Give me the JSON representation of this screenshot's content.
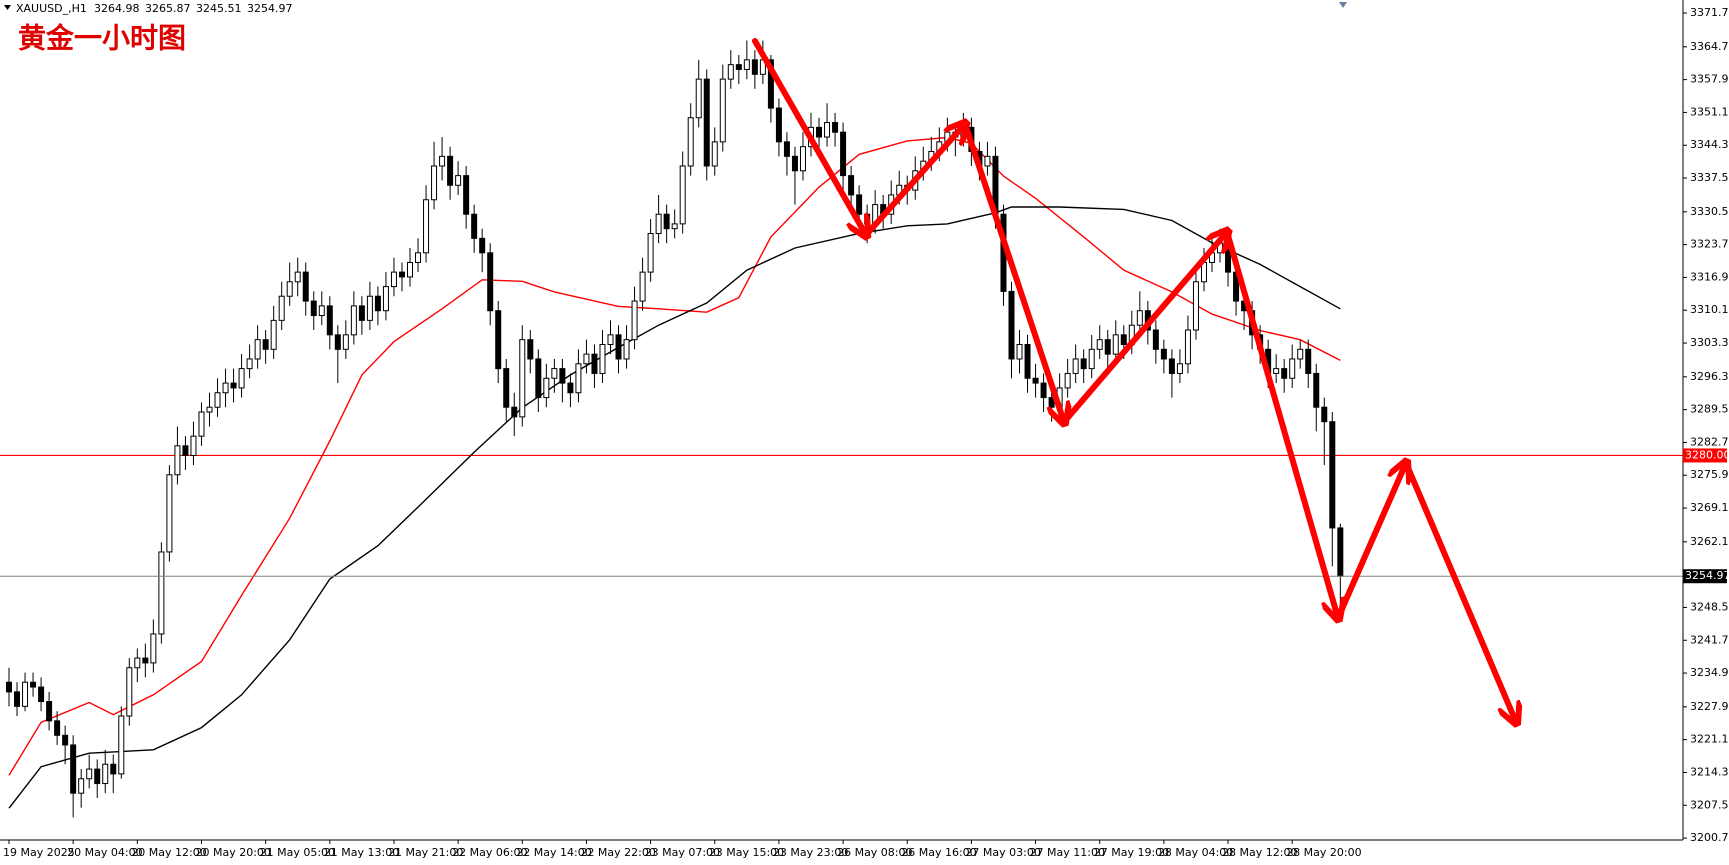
{
  "chart_data": {
    "type": "candlestick",
    "title": "黄金一小时图",
    "symbol": "XAUUSD_,H1",
    "ylim": [
      3200.3,
      3374.4
    ],
    "yticks": [
      {
        "value": 3371.7,
        "label": "3371.70"
      },
      {
        "value": 3364.7,
        "label": "3364.70"
      },
      {
        "value": 3357.9,
        "label": "3357.90"
      },
      {
        "value": 3351.1,
        "label": "3351.10"
      },
      {
        "value": 3344.3,
        "label": "3344.30"
      },
      {
        "value": 3337.5,
        "label": "3337.50"
      },
      {
        "value": 3330.5,
        "label": "3330.50"
      },
      {
        "value": 3323.7,
        "label": "3323.70"
      },
      {
        "value": 3316.9,
        "label": "3316.90"
      },
      {
        "value": 3310.1,
        "label": "3310.10"
      },
      {
        "value": 3303.3,
        "label": "3303.30"
      },
      {
        "value": 3296.3,
        "label": "3296.30"
      },
      {
        "value": 3289.5,
        "label": "3289.50"
      },
      {
        "value": 3282.7,
        "label": "3282.70"
      },
      {
        "value": 3275.9,
        "label": "3275.90"
      },
      {
        "value": 3269.1,
        "label": "3269.10"
      },
      {
        "value": 3262.1,
        "label": "3262.10"
      },
      {
        "value": 3248.5,
        "label": "3248.50"
      },
      {
        "value": 3241.7,
        "label": "3241.70"
      },
      {
        "value": 3234.9,
        "label": "3234.90"
      },
      {
        "value": 3227.9,
        "label": "3227.90"
      },
      {
        "value": 3221.1,
        "label": "3221.10"
      },
      {
        "value": 3214.3,
        "label": "3214.30"
      },
      {
        "value": 3207.5,
        "label": "3207.50"
      },
      {
        "value": 3200.7,
        "label": "3200.70"
      }
    ],
    "grid": false,
    "bull_color": "#ffffff",
    "bear_color": "#000000",
    "outline_color": "#000000",
    "categories": [
      "19 May 2025",
      null,
      null,
      null,
      null,
      null,
      null,
      null,
      "20 May 04:00",
      null,
      null,
      null,
      null,
      null,
      null,
      null,
      "20 May 12:00",
      null,
      null,
      null,
      null,
      null,
      null,
      null,
      "20 May 20:00",
      null,
      null,
      null,
      null,
      null,
      null,
      null,
      "21 May 05:00",
      null,
      null,
      null,
      null,
      null,
      null,
      null,
      "21 May 13:00",
      null,
      null,
      null,
      null,
      null,
      null,
      null,
      "21 May 21:00",
      null,
      null,
      null,
      null,
      null,
      null,
      null,
      "22 May 06:00",
      null,
      null,
      null,
      null,
      null,
      null,
      null,
      "22 May 14:00",
      null,
      null,
      null,
      null,
      null,
      null,
      null,
      "22 May 22:00",
      null,
      null,
      null,
      null,
      null,
      null,
      null,
      "23 May 07:00",
      null,
      null,
      null,
      null,
      null,
      null,
      null,
      "23 May 15:00",
      null,
      null,
      null,
      null,
      null,
      null,
      null,
      "23 May 23:00",
      null,
      null,
      null,
      null,
      null,
      null,
      null,
      "26 May 08:00",
      null,
      null,
      null,
      null,
      null,
      null,
      null,
      "26 May 16:00",
      null,
      null,
      null,
      null,
      null,
      null,
      null,
      "27 May 03:00",
      null,
      null,
      null,
      null,
      null,
      null,
      null,
      "27 May 11:00",
      null,
      null,
      null,
      null,
      null,
      null,
      null,
      "27 May 19:00",
      null,
      null,
      null,
      null,
      null,
      null,
      null,
      "28 May 04:00",
      null,
      null,
      null,
      null,
      null,
      null,
      null,
      "28 May 12:00",
      null,
      null,
      null,
      null,
      null,
      null,
      null,
      "28 May 20:00",
      null,
      null,
      null,
      null,
      null,
      null
    ],
    "ohlc": [
      [
        3233,
        3236,
        3228,
        3231
      ],
      [
        3231,
        3233,
        3226,
        3228
      ],
      [
        3228,
        3235,
        3227,
        3233
      ],
      [
        3233,
        3235,
        3230,
        3232
      ],
      [
        3232,
        3234,
        3227,
        3229
      ],
      [
        3229,
        3231,
        3223,
        3225
      ],
      [
        3225,
        3227,
        3220,
        3222
      ],
      [
        3222,
        3224,
        3216,
        3220
      ],
      [
        3220,
        3222,
        3205,
        3210
      ],
      [
        3210,
        3215,
        3207,
        3213
      ],
      [
        3213,
        3218,
        3211,
        3215
      ],
      [
        3215,
        3217,
        3209,
        3212
      ],
      [
        3212,
        3219,
        3210,
        3216
      ],
      [
        3216,
        3218,
        3210,
        3214
      ],
      [
        3214,
        3228,
        3213,
        3226
      ],
      [
        3226,
        3238,
        3224,
        3236
      ],
      [
        3236,
        3240,
        3233,
        3238
      ],
      [
        3238,
        3241,
        3234,
        3237
      ],
      [
        3237,
        3246,
        3235,
        3243
      ],
      [
        3243,
        3262,
        3241,
        3260
      ],
      [
        3260,
        3278,
        3258,
        3276
      ],
      [
        3276,
        3286,
        3274,
        3282
      ],
      [
        3282,
        3284,
        3277,
        3280
      ],
      [
        3280,
        3287,
        3278,
        3284
      ],
      [
        3284,
        3291,
        3282,
        3289
      ],
      [
        3289,
        3293,
        3286,
        3290
      ],
      [
        3290,
        3296,
        3288,
        3293
      ],
      [
        3293,
        3298,
        3290,
        3295
      ],
      [
        3295,
        3298,
        3291,
        3294
      ],
      [
        3294,
        3301,
        3292,
        3298
      ],
      [
        3298,
        3303,
        3296,
        3300
      ],
      [
        3300,
        3307,
        3298,
        3304
      ],
      [
        3304,
        3306,
        3299,
        3302
      ],
      [
        3302,
        3311,
        3300,
        3308
      ],
      [
        3308,
        3316,
        3306,
        3313
      ],
      [
        3313,
        3320,
        3311,
        3316
      ],
      [
        3316,
        3321,
        3313,
        3318
      ],
      [
        3318,
        3320,
        3309,
        3312
      ],
      [
        3312,
        3314,
        3306,
        3309
      ],
      [
        3309,
        3314,
        3307,
        3311
      ],
      [
        3311,
        3313,
        3302,
        3305
      ],
      [
        3305,
        3307,
        3295,
        3302
      ],
      [
        3302,
        3308,
        3300,
        3305
      ],
      [
        3305,
        3314,
        3303,
        3311
      ],
      [
        3311,
        3313,
        3305,
        3308
      ],
      [
        3308,
        3316,
        3306,
        3313
      ],
      [
        3313,
        3315,
        3307,
        3310
      ],
      [
        3310,
        3318,
        3308,
        3315
      ],
      [
        3315,
        3321,
        3313,
        3318
      ],
      [
        3318,
        3320,
        3314,
        3317
      ],
      [
        3317,
        3323,
        3315,
        3320
      ],
      [
        3320,
        3325,
        3318,
        3322
      ],
      [
        3322,
        3336,
        3320,
        3333
      ],
      [
        3333,
        3345,
        3331,
        3340
      ],
      [
        3340,
        3346,
        3337,
        3342
      ],
      [
        3342,
        3344,
        3333,
        3336
      ],
      [
        3336,
        3341,
        3334,
        3338
      ],
      [
        3338,
        3340,
        3327,
        3330
      ],
      [
        3330,
        3332,
        3322,
        3325
      ],
      [
        3325,
        3327,
        3318,
        3322
      ],
      [
        3322,
        3324,
        3307,
        3310
      ],
      [
        3310,
        3312,
        3295,
        3298
      ],
      [
        3298,
        3300,
        3287,
        3290
      ],
      [
        3290,
        3293,
        3284,
        3288
      ],
      [
        3288,
        3307,
        3286,
        3304
      ],
      [
        3304,
        3306,
        3297,
        3300
      ],
      [
        3300,
        3302,
        3289,
        3292
      ],
      [
        3292,
        3299,
        3290,
        3296
      ],
      [
        3296,
        3300,
        3293,
        3298
      ],
      [
        3298,
        3300,
        3291,
        3295
      ],
      [
        3295,
        3297,
        3290,
        3293
      ],
      [
        3293,
        3302,
        3291,
        3299
      ],
      [
        3299,
        3304,
        3297,
        3301
      ],
      [
        3301,
        3303,
        3294,
        3297
      ],
      [
        3297,
        3306,
        3295,
        3303
      ],
      [
        3303,
        3308,
        3301,
        3305
      ],
      [
        3305,
        3307,
        3297,
        3300
      ],
      [
        3300,
        3307,
        3298,
        3304
      ],
      [
        3304,
        3315,
        3302,
        3312
      ],
      [
        3312,
        3321,
        3310,
        3318
      ],
      [
        3318,
        3329,
        3316,
        3326
      ],
      [
        3326,
        3334,
        3324,
        3330
      ],
      [
        3330,
        3332,
        3324,
        3327
      ],
      [
        3327,
        3331,
        3325,
        3328
      ],
      [
        3328,
        3343,
        3326,
        3340
      ],
      [
        3340,
        3353,
        3338,
        3350
      ],
      [
        3350,
        3362,
        3348,
        3358
      ],
      [
        3358,
        3360,
        3337,
        3340
      ],
      [
        3340,
        3348,
        3338,
        3345
      ],
      [
        3345,
        3361,
        3343,
        3358
      ],
      [
        3358,
        3364,
        3356,
        3361
      ],
      [
        3361,
        3363,
        3357,
        3360
      ],
      [
        3360,
        3366,
        3358,
        3362
      ],
      [
        3362,
        3364,
        3356,
        3359
      ],
      [
        3359,
        3366,
        3357,
        3362
      ],
      [
        3362,
        3363,
        3349,
        3352
      ],
      [
        3352,
        3354,
        3342,
        3345
      ],
      [
        3345,
        3347,
        3338,
        3342
      ],
      [
        3342,
        3344,
        3332,
        3339
      ],
      [
        3339,
        3347,
        3337,
        3344
      ],
      [
        3344,
        3351,
        3342,
        3348
      ],
      [
        3348,
        3350,
        3343,
        3346
      ],
      [
        3346,
        3353,
        3344,
        3349
      ],
      [
        3349,
        3351,
        3344,
        3347
      ],
      [
        3347,
        3349,
        3335,
        3338
      ],
      [
        3338,
        3340,
        3331,
        3334
      ],
      [
        3334,
        3336,
        3327,
        3330
      ],
      [
        3330,
        3332,
        3324,
        3328
      ],
      [
        3328,
        3335,
        3326,
        3332
      ],
      [
        3332,
        3334,
        3327,
        3330
      ],
      [
        3330,
        3337,
        3328,
        3334
      ],
      [
        3334,
        3339,
        3332,
        3336
      ],
      [
        3336,
        3338,
        3332,
        3335
      ],
      [
        3335,
        3342,
        3333,
        3339
      ],
      [
        3339,
        3344,
        3337,
        3341
      ],
      [
        3341,
        3346,
        3339,
        3343
      ],
      [
        3343,
        3348,
        3341,
        3345
      ],
      [
        3345,
        3350,
        3343,
        3347
      ],
      [
        3347,
        3349,
        3342,
        3346
      ],
      [
        3346,
        3351,
        3344,
        3348
      ],
      [
        3348,
        3350,
        3340,
        3343
      ],
      [
        3343,
        3345,
        3337,
        3340
      ],
      [
        3340,
        3345,
        3338,
        3342
      ],
      [
        3342,
        3344,
        3327,
        3330
      ],
      [
        3330,
        3332,
        3311,
        3314
      ],
      [
        3314,
        3316,
        3296,
        3300
      ],
      [
        3300,
        3306,
        3297,
        3303
      ],
      [
        3303,
        3305,
        3293,
        3296
      ],
      [
        3296,
        3299,
        3292,
        3295
      ],
      [
        3295,
        3297,
        3289,
        3292
      ],
      [
        3292,
        3294,
        3287,
        3290
      ],
      [
        3290,
        3297,
        3288,
        3294
      ],
      [
        3294,
        3300,
        3292,
        3297
      ],
      [
        3297,
        3303,
        3295,
        3300
      ],
      [
        3300,
        3302,
        3295,
        3298
      ],
      [
        3298,
        3305,
        3296,
        3302
      ],
      [
        3302,
        3307,
        3300,
        3304
      ],
      [
        3304,
        3306,
        3298,
        3301
      ],
      [
        3301,
        3308,
        3299,
        3305
      ],
      [
        3305,
        3307,
        3300,
        3303
      ],
      [
        3303,
        3310,
        3301,
        3307
      ],
      [
        3307,
        3314,
        3305,
        3310
      ],
      [
        3310,
        3312,
        3303,
        3306
      ],
      [
        3306,
        3308,
        3299,
        3302
      ],
      [
        3302,
        3304,
        3297,
        3300
      ],
      [
        3300,
        3302,
        3292,
        3297
      ],
      [
        3297,
        3302,
        3295,
        3299
      ],
      [
        3299,
        3309,
        3297,
        3306
      ],
      [
        3306,
        3319,
        3304,
        3316
      ],
      [
        3316,
        3323,
        3314,
        3320
      ],
      [
        3320,
        3325,
        3318,
        3322
      ],
      [
        3322,
        3327,
        3320,
        3324
      ],
      [
        3324,
        3326,
        3315,
        3318
      ],
      [
        3318,
        3320,
        3309,
        3312
      ],
      [
        3312,
        3314,
        3306,
        3310
      ],
      [
        3310,
        3312,
        3302,
        3305
      ],
      [
        3305,
        3307,
        3299,
        3302
      ],
      [
        3302,
        3304,
        3294,
        3297
      ],
      [
        3297,
        3301,
        3295,
        3298
      ],
      [
        3298,
        3300,
        3293,
        3296
      ],
      [
        3296,
        3303,
        3294,
        3300
      ],
      [
        3300,
        3304,
        3298,
        3302
      ],
      [
        3302,
        3304,
        3294,
        3297
      ],
      [
        3297,
        3299,
        3285,
        3290
      ],
      [
        3290,
        3292,
        3278,
        3287
      ],
      [
        3287,
        3289,
        3257,
        3264.98
      ],
      [
        3264.98,
        3265.87,
        3245.51,
        3254.97
      ]
    ],
    "series": [
      {
        "color": "#ff0000",
        "x": [
          0,
          4,
          10,
          13,
          18,
          24,
          29,
          35,
          40,
          44,
          48,
          54,
          59,
          64,
          68,
          76,
          81,
          87,
          91,
          95,
          101,
          106,
          112,
          117,
          120,
          124,
          128,
          134,
          139,
          145,
          150,
          156,
          161,
          166
        ],
        "values": [
          3213.7,
          3224.7,
          3228.8,
          3226.3,
          3230.4,
          3237.3,
          3251,
          3267,
          3283,
          3296.7,
          3303.6,
          3310.4,
          3316.4,
          3316.1,
          3313.9,
          3310.9,
          3310.4,
          3309.7,
          3312.7,
          3325.3,
          3335.6,
          3342.4,
          3345.2,
          3345.9,
          3344.7,
          3337.9,
          3333.3,
          3325.3,
          3318.4,
          3313.9,
          3309.3,
          3305.9,
          3304,
          3299.7
        ]
      },
      {
        "color": "#000000",
        "x": [
          0,
          4,
          10,
          18,
          24,
          29,
          35,
          40,
          46,
          51,
          58,
          64,
          70,
          76,
          81,
          87,
          92,
          98,
          106,
          112,
          117,
          123,
          125,
          131,
          139,
          145,
          150,
          156,
          161,
          166
        ],
        "values": [
          3206.9,
          3215.5,
          3218.3,
          3219,
          3223.6,
          3230.4,
          3241.8,
          3254.4,
          3261.3,
          3269.3,
          3280.7,
          3289.9,
          3296.7,
          3302.4,
          3307,
          3311.6,
          3318.4,
          3323,
          3326,
          3327.6,
          3328,
          3330.3,
          3331.5,
          3331.5,
          3331,
          3328.7,
          3324.1,
          3319.6,
          3315,
          3310.4
        ]
      }
    ],
    "levels": [
      {
        "value": 3280,
        "label": "3280.00",
        "color": "#ff0000"
      }
    ],
    "current_color": "#808080"
  }
}
